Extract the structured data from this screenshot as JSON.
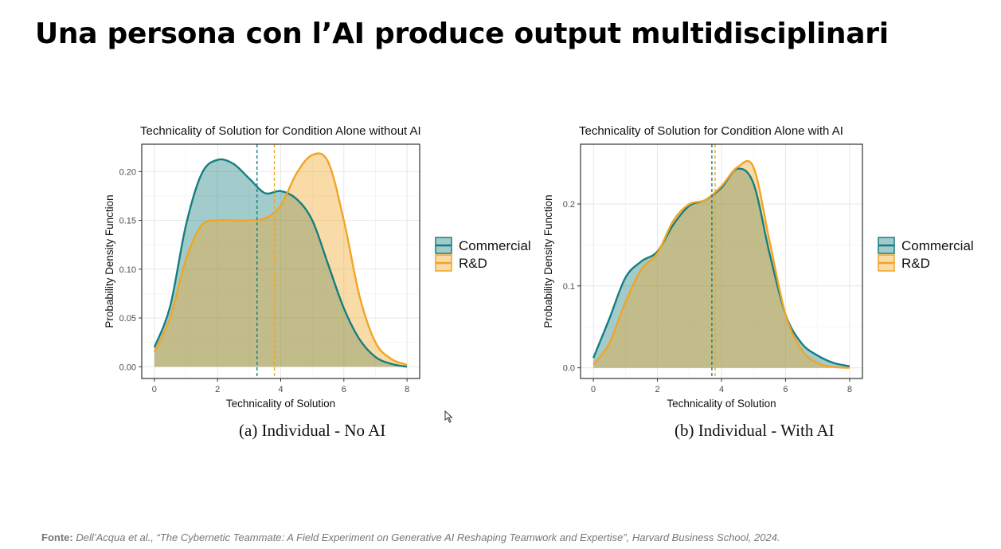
{
  "slide": {
    "title": "Una persona con l’AI produce output multidisciplinari",
    "source_label": "Fonte:",
    "source_text": "Dell’Acqua et al., “The Cybernetic Teammate: A Field Experiment on Generative AI Reshaping Teamwork and Expertise”, Harvard Business School, 2024."
  },
  "colors": {
    "commercial": "#177e80",
    "rd": "#f0a526"
  },
  "chart_data": [
    {
      "type": "area",
      "title": "Technicality of Solution for Condition Alone without AI",
      "xlabel": "Technicality of Solution",
      "ylabel": "Probability Density Function",
      "caption": "(a) Individual - No AI",
      "xlim": [
        -0.4,
        8.4
      ],
      "ylim": [
        -0.012,
        0.228
      ],
      "xticks": [
        0,
        2,
        4,
        6,
        8
      ],
      "yticks": [
        0.0,
        0.05,
        0.1,
        0.15,
        0.2
      ],
      "ytick_labels": [
        "0.00",
        "0.05",
        "0.10",
        "0.15",
        "0.20"
      ],
      "grid": true,
      "legend_position": "right",
      "series": [
        {
          "name": "Commercial",
          "mean": 3.25,
          "x": [
            0,
            0.5,
            1,
            1.5,
            2,
            2.5,
            3,
            3.5,
            4,
            4.5,
            5,
            5.5,
            6,
            6.5,
            7,
            7.5,
            8
          ],
          "y": [
            0.02,
            0.062,
            0.145,
            0.198,
            0.212,
            0.208,
            0.193,
            0.178,
            0.18,
            0.172,
            0.15,
            0.105,
            0.06,
            0.028,
            0.01,
            0.003,
            0.0
          ]
        },
        {
          "name": "R&D",
          "mean": 3.8,
          "x": [
            0,
            0.5,
            1,
            1.5,
            2,
            2.5,
            3,
            3.5,
            4,
            4.5,
            5,
            5.5,
            6,
            6.5,
            7,
            7.5,
            8
          ],
          "y": [
            0.015,
            0.05,
            0.11,
            0.145,
            0.15,
            0.15,
            0.15,
            0.152,
            0.165,
            0.198,
            0.217,
            0.21,
            0.15,
            0.072,
            0.025,
            0.008,
            0.002
          ]
        }
      ]
    },
    {
      "type": "area",
      "title": "Technicality of Solution for Condition Alone with AI",
      "xlabel": "Technicality of Solution",
      "ylabel": "Probability Density Function",
      "caption": "(b) Individual - With AI",
      "xlim": [
        -0.4,
        8.4
      ],
      "ylim": [
        -0.013,
        0.273
      ],
      "xticks": [
        0,
        2,
        4,
        6,
        8
      ],
      "yticks": [
        0.0,
        0.1,
        0.2
      ],
      "ytick_labels": [
        "0.0",
        "0.1",
        "0.2"
      ],
      "grid": true,
      "legend_position": "right",
      "series": [
        {
          "name": "Commercial",
          "mean": 3.7,
          "x": [
            0,
            0.5,
            1,
            1.5,
            2,
            2.5,
            3,
            3.5,
            4,
            4.5,
            5,
            5.5,
            6,
            6.5,
            7,
            7.5,
            8
          ],
          "y": [
            0.012,
            0.06,
            0.11,
            0.13,
            0.142,
            0.175,
            0.198,
            0.205,
            0.22,
            0.243,
            0.225,
            0.14,
            0.065,
            0.03,
            0.015,
            0.006,
            0.002
          ]
        },
        {
          "name": "R&D",
          "mean": 3.8,
          "x": [
            0,
            0.5,
            1,
            1.5,
            2,
            2.5,
            3,
            3.5,
            4,
            4.5,
            5,
            5.5,
            6,
            6.5,
            7,
            7.5,
            8
          ],
          "y": [
            0.004,
            0.03,
            0.08,
            0.12,
            0.14,
            0.18,
            0.2,
            0.205,
            0.222,
            0.245,
            0.245,
            0.155,
            0.065,
            0.022,
            0.006,
            0.001,
            0.0
          ]
        }
      ]
    }
  ]
}
